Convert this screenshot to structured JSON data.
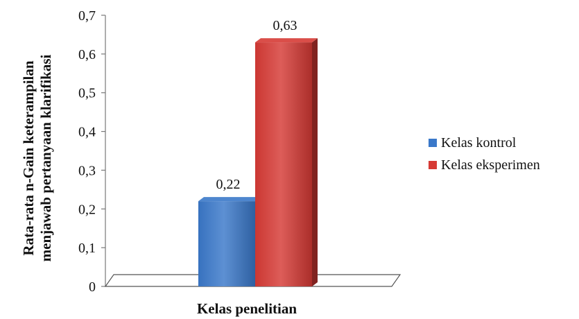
{
  "chart_data": {
    "type": "bar",
    "categories": [
      ""
    ],
    "series": [
      {
        "name": "Kelas kontrol",
        "values": [
          0.22
        ],
        "color": "#3a78c9"
      },
      {
        "name": "Kelas eksperimen",
        "values": [
          0.63
        ],
        "color": "#d63a35"
      }
    ],
    "data_labels": [
      "0,22",
      "0,63"
    ],
    "y_ticks": [
      "0",
      "0,1",
      "0,2",
      "0,3",
      "0,4",
      "0,5",
      "0,6",
      "0,7"
    ],
    "ylim": [
      0,
      0.7
    ],
    "xlabel": "Kelas penelitian",
    "ylabel_line1": "Rata-rata n-Gain keterampilan",
    "ylabel_line2": "menjawab pertanyaan klarifikasi",
    "legend_position": "right",
    "grid": false,
    "style": "3d-column"
  }
}
